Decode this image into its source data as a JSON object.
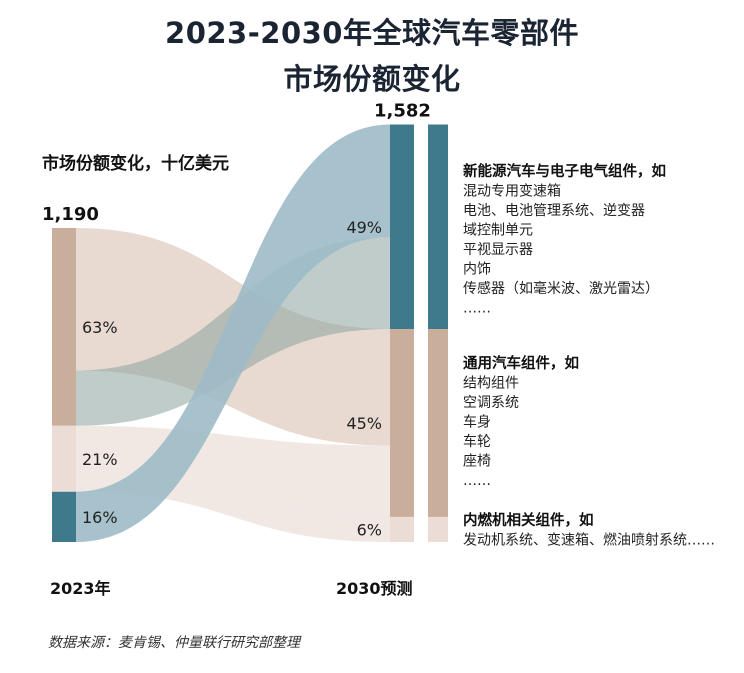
{
  "title_line1": "2023-2030年全球汽车零部件",
  "title_line2": "市场份额变化",
  "source": "数据来源：麦肯锡、仲量联行研究部整理",
  "colors": {
    "ev": "#3f7a8c",
    "general": "#c9ae9c",
    "ice": "#ecdcd6",
    "flow_ev": "#9dbbc7",
    "flow_general": "#e6d6cc",
    "flow_ice": "#f0e6e2",
    "flow_ev_to_general": "#8aa39f"
  },
  "chart_data": {
    "type": "sankey",
    "unit_label": "市场份额变化，十亿美元",
    "periods": [
      {
        "label": "2023年",
        "total": 1190,
        "total_label": "1,190",
        "shares": {
          "general": 63,
          "ice": 21,
          "ev": 16
        },
        "share_labels": {
          "general": "63%",
          "ice": "21%",
          "ev": "16%"
        }
      },
      {
        "label": "2030预测",
        "total": 1582,
        "total_label": "1,582",
        "shares": {
          "ev": 49,
          "general": 45,
          "ice": 6
        },
        "share_labels": {
          "ev": "49%",
          "general": "45%",
          "ice": "6%"
        }
      }
    ],
    "categories": [
      {
        "key": "ev",
        "heading": "新能源汽车与电子电气组件，如",
        "items": [
          "混动专用变速箱",
          "电池、电池管理系统、逆变器",
          "域控制单元",
          "平视显示器",
          "内饰",
          "传感器（如毫米波、激光雷达）",
          "……"
        ]
      },
      {
        "key": "general",
        "heading": "通用汽车组件，如",
        "items": [
          "结构组件",
          "空调系统",
          "车身",
          "车轮",
          "座椅",
          "……"
        ]
      },
      {
        "key": "ice",
        "heading": "内燃机相关组件，如",
        "items": [
          "发动机系统、变速箱、燃油喷射系统……"
        ]
      }
    ]
  }
}
